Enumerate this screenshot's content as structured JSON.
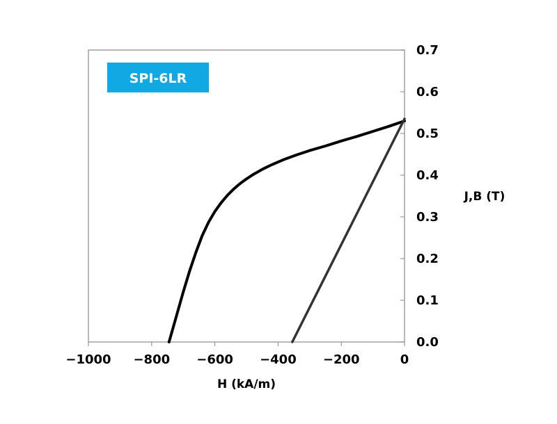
{
  "chart_data": {
    "type": "line",
    "badge": "SPI-6LR",
    "xlabel": "H (kA/m)",
    "ylabel": "J,B (T)",
    "xlim": [
      -1000,
      0
    ],
    "ylim": [
      0.0,
      0.7
    ],
    "x_ticks": [
      -1000,
      -800,
      -600,
      -400,
      -200,
      0
    ],
    "x_tick_labels": [
      "−1000",
      "−800",
      "−600",
      "−400",
      "−200",
      "0"
    ],
    "y_ticks": [
      0.0,
      0.1,
      0.2,
      0.3,
      0.4,
      0.5,
      0.6,
      0.7
    ],
    "y_tick_labels": [
      "0.0",
      "0.1",
      "0.2",
      "0.3",
      "0.4",
      "0.5",
      "0.6",
      "0.7"
    ],
    "grid": false,
    "series": [
      {
        "color": "#000000",
        "x": [
          -745,
          -730,
          -715,
          -700,
          -680,
          -660,
          -640,
          -620,
          -600,
          -580,
          -560,
          -540,
          -520,
          -500,
          -480,
          -450,
          -420,
          -380,
          -340,
          -300,
          -250,
          -200,
          -150,
          -100,
          -50,
          0
        ],
        "y": [
          0.0,
          0.04,
          0.08,
          0.12,
          0.17,
          0.215,
          0.255,
          0.287,
          0.313,
          0.334,
          0.352,
          0.367,
          0.38,
          0.391,
          0.401,
          0.414,
          0.425,
          0.438,
          0.449,
          0.459,
          0.47,
          0.482,
          0.493,
          0.505,
          0.517,
          0.53
        ]
      },
      {
        "color": "#333333",
        "x": [
          -355,
          0
        ],
        "y": [
          0.0,
          0.535
        ]
      }
    ],
    "colors": {
      "badge_bg": "#10a9e4",
      "axis": "#a0a0a0",
      "tick": "#888888"
    }
  }
}
